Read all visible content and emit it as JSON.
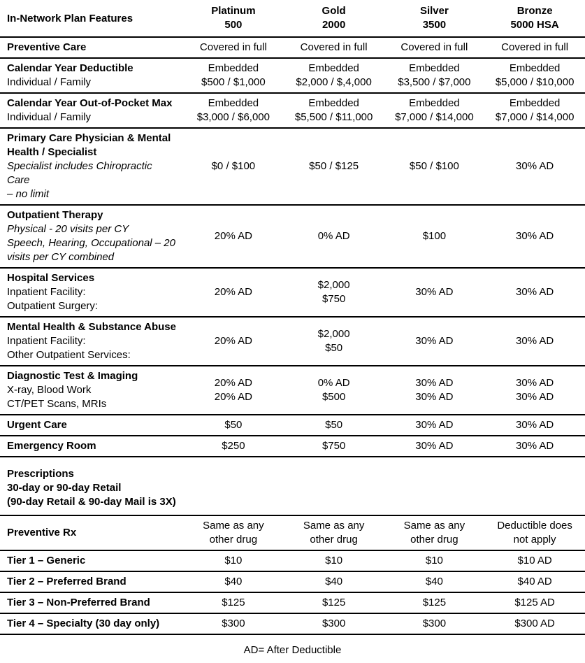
{
  "table": {
    "header": {
      "feature_label": "In-Network Plan Features",
      "plans": [
        {
          "name": "Platinum",
          "tier": "500"
        },
        {
          "name": "Gold",
          "tier": "2000"
        },
        {
          "name": "Silver",
          "tier": "3500"
        },
        {
          "name": "Bronze",
          "tier": "5000 HSA"
        }
      ]
    },
    "rows": [
      {
        "id": "preventive-care",
        "feature": [
          {
            "text": "Preventive Care",
            "style": "bold"
          }
        ],
        "values": [
          [
            "Covered in full"
          ],
          [
            "Covered in full"
          ],
          [
            "Covered in full"
          ],
          [
            "Covered in full"
          ]
        ]
      },
      {
        "id": "calendar-year-deductible",
        "feature": [
          {
            "text": "Calendar Year Deductible",
            "style": "bold"
          },
          {
            "text": "Individual / Family",
            "style": "regular"
          }
        ],
        "values": [
          [
            "Embedded",
            "$500 / $1,000"
          ],
          [
            "Embedded",
            "$2,000 / $,4,000"
          ],
          [
            "Embedded",
            "$3,500 / $7,000"
          ],
          [
            "Embedded",
            "$5,000 / $10,000"
          ]
        ]
      },
      {
        "id": "calendar-year-out-of-pocket-max",
        "feature": [
          {
            "text": "Calendar Year Out-of-Pocket Max",
            "style": "bold"
          },
          {
            "text": "Individual / Family",
            "style": "regular"
          }
        ],
        "values": [
          [
            "Embedded",
            "$3,000 / $6,000"
          ],
          [
            "Embedded",
            "$5,500 / $11,000"
          ],
          [
            "Embedded",
            "$7,000 / $14,000"
          ],
          [
            "Embedded",
            "$7,000 / $14,000"
          ]
        ]
      },
      {
        "id": "primary-care-physician-specialist",
        "feature": [
          {
            "text": "Primary Care Physician & Mental",
            "style": "bold"
          },
          {
            "text": "Health / Specialist",
            "style": "bold"
          },
          {
            "text": "Specialist includes Chiropractic Care",
            "style": "italic"
          },
          {
            "text": "– no limit",
            "style": "italic"
          }
        ],
        "values": [
          [
            "$0 / $100"
          ],
          [
            "$50 / $125"
          ],
          [
            "$50 / $100"
          ],
          [
            "30% AD"
          ]
        ]
      },
      {
        "id": "outpatient-therapy",
        "feature": [
          {
            "text": "Outpatient Therapy",
            "style": "bold"
          },
          {
            "text": "Physical - 20 visits per CY",
            "style": "italic"
          },
          {
            "text": "Speech, Hearing, Occupational – 20",
            "style": "italic"
          },
          {
            "text": "visits per CY combined",
            "style": "italic"
          }
        ],
        "values": [
          [
            "20% AD"
          ],
          [
            "0% AD"
          ],
          [
            "$100"
          ],
          [
            "30% AD"
          ]
        ]
      },
      {
        "id": "hospital-services",
        "feature": [
          {
            "text": "Hospital Services",
            "style": "bold"
          },
          {
            "text": "Inpatient Facility:",
            "style": "regular"
          },
          {
            "text": "Outpatient Surgery:",
            "style": "regular"
          }
        ],
        "values": [
          [
            "20% AD"
          ],
          [
            "$2,000",
            "$750"
          ],
          [
            "30% AD"
          ],
          [
            "30% AD"
          ]
        ]
      },
      {
        "id": "mental-health-substance-abuse",
        "feature": [
          {
            "text": "Mental Health & Substance Abuse",
            "style": "bold"
          },
          {
            "text": "Inpatient Facility:",
            "style": "regular"
          },
          {
            "text": "Other Outpatient Services:",
            "style": "regular"
          }
        ],
        "values": [
          [
            "20% AD"
          ],
          [
            "$2,000",
            "$50"
          ],
          [
            "30% AD"
          ],
          [
            "30% AD"
          ]
        ]
      },
      {
        "id": "diagnostic-test-imaging",
        "feature": [
          {
            "text": "Diagnostic Test & Imaging",
            "style": "bold"
          },
          {
            "text": "X-ray, Blood Work",
            "style": "regular"
          },
          {
            "text": "CT/PET Scans, MRIs",
            "style": "regular"
          }
        ],
        "values": [
          [
            "20% AD",
            "20% AD"
          ],
          [
            "0% AD",
            "$500"
          ],
          [
            "30% AD",
            "30% AD"
          ],
          [
            "30% AD",
            "30% AD"
          ]
        ]
      },
      {
        "id": "urgent-care",
        "feature": [
          {
            "text": "Urgent Care",
            "style": "bold"
          }
        ],
        "values": [
          [
            "$50"
          ],
          [
            "$50"
          ],
          [
            "30% AD"
          ],
          [
            "30% AD"
          ]
        ]
      },
      {
        "id": "emergency-room",
        "feature": [
          {
            "text": "Emergency Room",
            "style": "bold"
          }
        ],
        "values": [
          [
            "$250"
          ],
          [
            "$750"
          ],
          [
            "30% AD"
          ],
          [
            "30% AD"
          ]
        ]
      }
    ]
  },
  "prescriptions": {
    "lines": [
      "Prescriptions",
      "30-day or 90-day Retail",
      "(90-day Retail & 90-day Mail is 3X)"
    ]
  },
  "rx_table": {
    "rows": [
      {
        "id": "preventive-rx",
        "feature": [
          {
            "text": "Preventive Rx",
            "style": "bold"
          }
        ],
        "values": [
          [
            "Same as any",
            "other drug"
          ],
          [
            "Same as any",
            "other drug"
          ],
          [
            "Same as any",
            "other drug"
          ],
          [
            "Deductible does",
            "not apply"
          ]
        ]
      },
      {
        "id": "tier-1-generic",
        "feature": [
          {
            "text": "Tier 1 – Generic",
            "style": "bold"
          }
        ],
        "values": [
          [
            "$10"
          ],
          [
            "$10"
          ],
          [
            "$10"
          ],
          [
            "$10 AD"
          ]
        ]
      },
      {
        "id": "tier-2-preferred-brand",
        "feature": [
          {
            "text": "Tier 2 – Preferred Brand",
            "style": "bold"
          }
        ],
        "values": [
          [
            "$40"
          ],
          [
            "$40"
          ],
          [
            "$40"
          ],
          [
            "$40 AD"
          ]
        ]
      },
      {
        "id": "tier-3-non-preferred-brand",
        "feature": [
          {
            "text": "Tier 3 – Non-Preferred Brand",
            "style": "bold"
          }
        ],
        "values": [
          [
            "$125"
          ],
          [
            "$125"
          ],
          [
            "$125"
          ],
          [
            "$125 AD"
          ]
        ]
      },
      {
        "id": "tier-4-specialty",
        "feature": [
          {
            "text": "Tier 4 – Specialty (30 day only)",
            "style": "bold"
          }
        ],
        "values": [
          [
            "$300"
          ],
          [
            "$300"
          ],
          [
            "$300"
          ],
          [
            "$300 AD"
          ]
        ]
      }
    ]
  },
  "footer": {
    "note": "AD= After Deductible"
  }
}
